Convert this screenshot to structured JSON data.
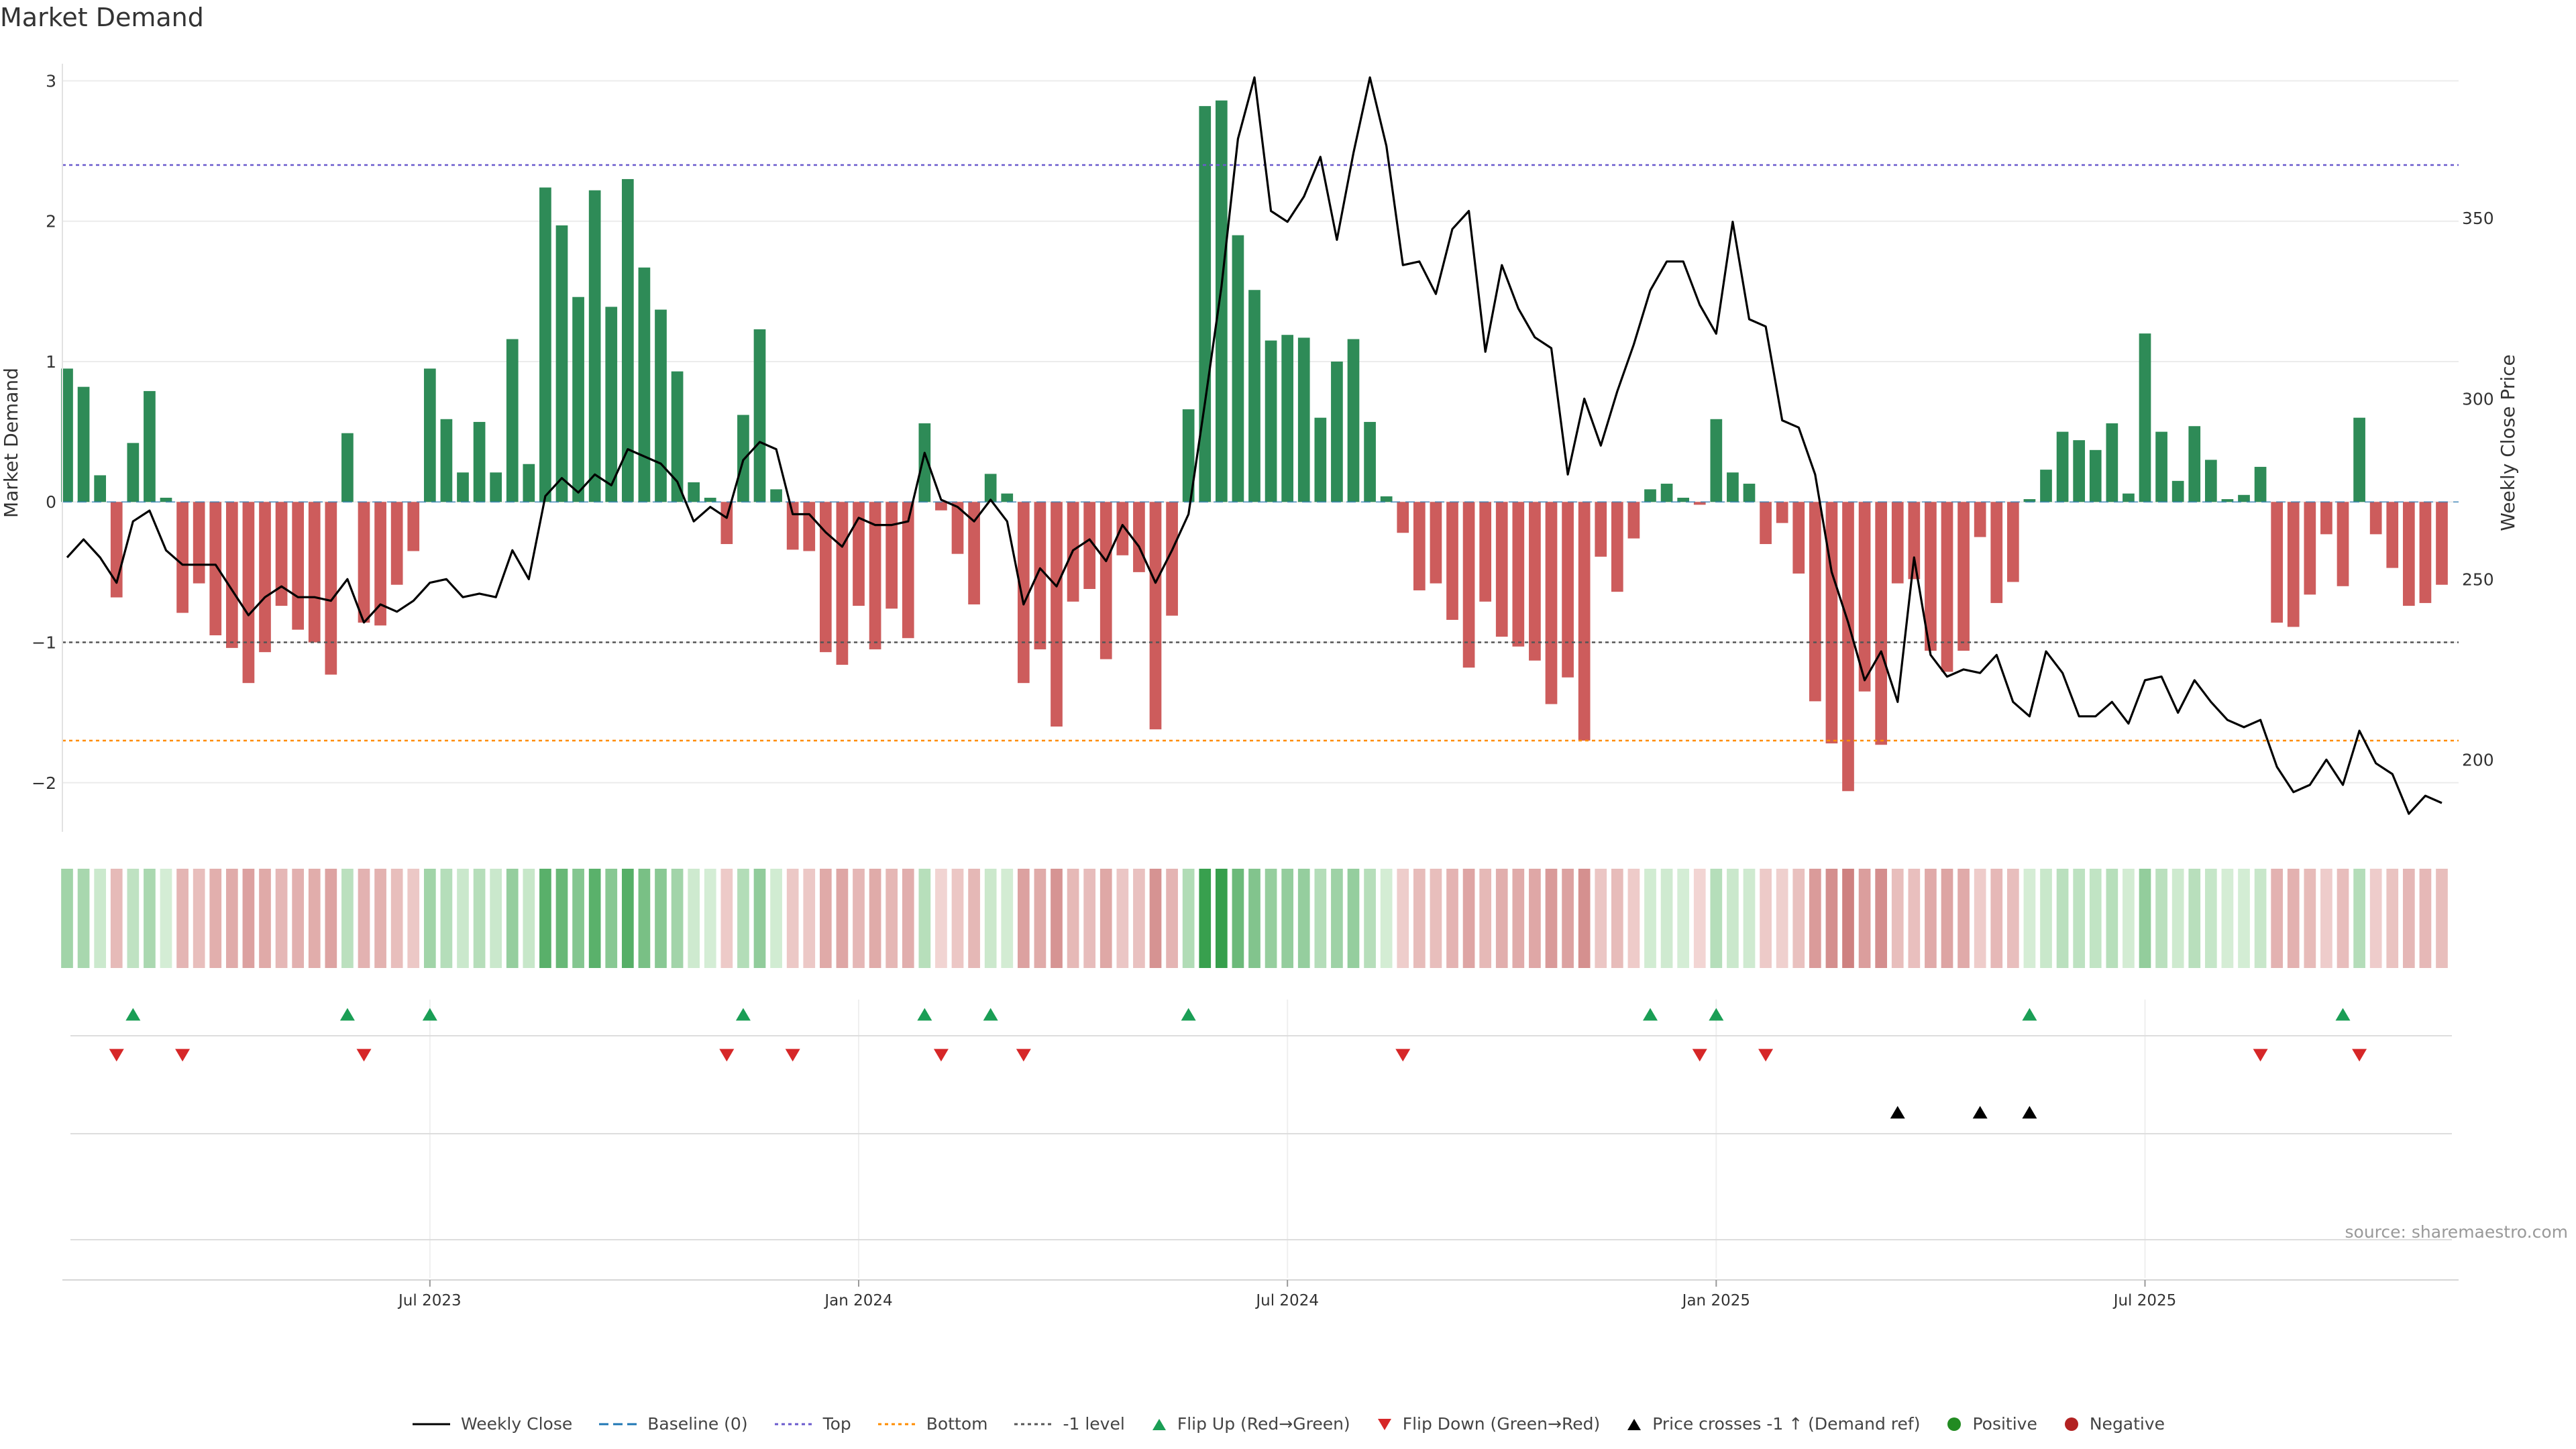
{
  "title": "Market Demand",
  "source": "source: sharemaestro.com",
  "colors": {
    "positive_bar": "#2e8b57",
    "negative_bar": "#cd5c5c",
    "close_line": "#000000",
    "top_line": "#6a5acd",
    "bottom_line": "#ff8c00",
    "minus1_line": "#555555",
    "flip_up": "#1a9e55",
    "flip_down": "#d62728",
    "cross_marker": "#000000"
  },
  "legend": [
    {
      "label": "Weekly Close",
      "marker": "solid-line",
      "color": "#000000"
    },
    {
      "label": "Baseline (0)",
      "marker": "dashed-line",
      "color": "#1f77b4"
    },
    {
      "label": "Top",
      "marker": "dotted-line",
      "color": "#6a5acd"
    },
    {
      "label": "Bottom",
      "marker": "dotted-line",
      "color": "#ff8c00"
    },
    {
      "label": "-1 level",
      "marker": "dotted-line",
      "color": "#555555"
    },
    {
      "label": "Flip Up (Red→Green)",
      "marker": "triangle-up",
      "color": "#1a9e55"
    },
    {
      "label": "Flip Down (Green→Red)",
      "marker": "triangle-down",
      "color": "#d62728"
    },
    {
      "label": "Price crosses -1 ↑ (Demand ref)",
      "marker": "triangle-up",
      "color": "#000000"
    },
    {
      "label": "Positive",
      "marker": "circle",
      "color": "#228b22"
    },
    {
      "label": "Negative",
      "marker": "circle",
      "color": "#b22222"
    }
  ],
  "chart_data": {
    "type": "bar",
    "ylabel": "Market Demand",
    "y2label": "Weekly Close Price",
    "ylim": [
      -2.35,
      3.05
    ],
    "y2lim": [
      180,
      390
    ],
    "yticks": [
      3,
      2,
      1,
      0,
      -1,
      -2
    ],
    "y2ticks": [
      350,
      300,
      250,
      200
    ],
    "xticks": [
      "Jul 2023",
      "Jan 2024",
      "Jul 2024",
      "Jan 2025",
      "Jul 2025"
    ],
    "xtick_week_index": [
      22,
      48,
      74,
      100,
      126
    ],
    "reference_lines": {
      "top": 2.4,
      "bottom": -1.7,
      "minus1": -1,
      "baseline": 0
    },
    "grid": true,
    "demand": [
      0.95,
      0.82,
      0.19,
      -0.68,
      0.42,
      0.79,
      0.03,
      -0.79,
      -0.58,
      -0.95,
      -1.04,
      -1.29,
      -1.07,
      -0.74,
      -0.91,
      -1.0,
      -1.23,
      0.49,
      -0.86,
      -0.88,
      -0.59,
      -0.35,
      0.95,
      0.59,
      0.21,
      0.57,
      0.21,
      1.16,
      0.27,
      2.24,
      1.97,
      1.46,
      2.22,
      1.39,
      2.3,
      1.67,
      1.37,
      0.93,
      0.14,
      0.03,
      -0.3,
      0.62,
      1.23,
      0.09,
      -0.34,
      -0.35,
      -1.07,
      -1.16,
      -0.74,
      -1.05,
      -0.76,
      -0.97,
      0.56,
      -0.06,
      -0.37,
      -0.73,
      0.2,
      0.06,
      -1.29,
      -1.05,
      -1.6,
      -0.71,
      -0.62,
      -1.12,
      -0.38,
      -0.5,
      -1.62,
      -0.81,
      0.66,
      2.82,
      2.86,
      1.9,
      1.51,
      1.15,
      1.19,
      1.17,
      0.6,
      1.0,
      1.16,
      0.57,
      0.04,
      -0.22,
      -0.63,
      -0.58,
      -0.84,
      -1.18,
      -0.71,
      -0.96,
      -1.03,
      -1.13,
      -1.44,
      -1.25,
      -1.7,
      -0.39,
      -0.64,
      -0.26,
      0.09,
      0.13,
      0.03,
      -0.02,
      0.59,
      0.21,
      0.13,
      -0.3,
      -0.15,
      -0.51,
      -1.42,
      -1.72,
      -2.06,
      -1.35,
      -1.73,
      -0.58,
      -0.55,
      -1.06,
      -1.21,
      -1.06,
      -0.25,
      -0.72,
      -0.57,
      0.02,
      0.23,
      0.5,
      0.44,
      0.37,
      0.56,
      0.06,
      1.2,
      0.5,
      0.15,
      0.54,
      0.3,
      0.02,
      0.05,
      0.25,
      -0.86,
      -0.89,
      -0.66,
      -0.23,
      -0.6,
      0.6,
      -0.23,
      -0.47,
      -0.74,
      -0.72,
      -0.59
    ],
    "weekly_close": [
      256,
      261,
      256,
      249,
      266,
      269,
      258,
      254,
      254,
      254,
      247,
      240,
      245,
      248,
      245,
      245,
      244,
      250,
      238,
      243,
      241,
      244,
      249,
      250,
      245,
      246,
      245,
      258,
      250,
      273,
      278,
      274,
      279,
      276,
      286,
      284,
      282,
      277,
      266,
      270,
      267,
      283,
      288,
      286,
      268,
      268,
      263,
      259,
      267,
      265,
      265,
      266,
      285,
      272,
      270,
      266,
      272,
      266,
      243,
      253,
      248,
      258,
      261,
      255,
      265,
      259,
      249,
      258,
      268,
      299,
      331,
      372,
      389,
      352,
      349,
      356,
      367,
      344,
      368,
      389,
      370,
      337,
      338,
      329,
      347,
      352,
      313,
      337,
      325,
      317,
      314,
      279,
      300,
      287,
      302,
      315,
      330,
      338,
      338,
      326,
      318,
      349,
      322,
      320,
      294,
      292,
      279,
      252,
      238,
      222,
      230,
      216,
      256,
      229,
      223,
      225,
      224,
      229,
      216,
      212,
      230,
      224,
      212,
      212,
      216,
      210,
      222,
      223,
      213,
      222,
      216,
      211,
      209,
      211,
      198,
      191,
      193,
      200,
      193,
      208,
      199,
      196,
      185,
      190,
      188
    ],
    "flip_up_weeks": [
      4,
      17,
      22,
      41,
      52,
      56,
      68,
      96,
      100,
      119,
      138
    ],
    "flip_down_weeks": [
      3,
      7,
      18,
      40,
      44,
      53,
      58,
      81,
      99,
      103,
      133,
      139
    ],
    "price_cross_weeks": [
      111,
      116,
      119
    ]
  }
}
